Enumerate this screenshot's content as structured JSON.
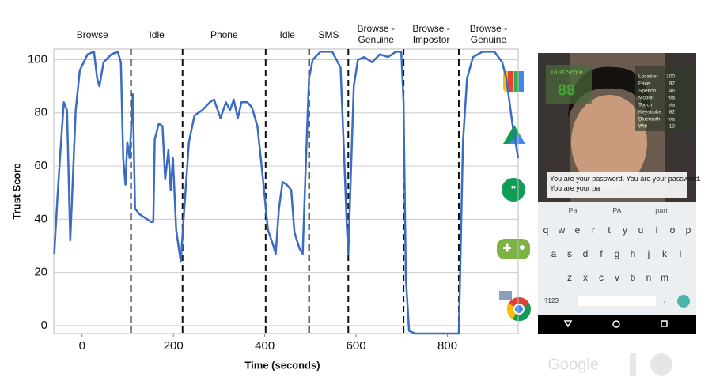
{
  "chart_data": {
    "type": "line",
    "x": [
      -61,
      -54,
      -47,
      -40,
      -33,
      -26,
      -14,
      -5,
      12,
      26,
      33,
      38,
      47,
      64,
      78,
      85,
      90,
      95,
      99,
      104,
      111,
      116,
      125,
      151,
      156,
      159,
      168,
      176,
      182,
      189,
      194,
      199,
      206,
      216,
      223,
      234,
      246,
      263,
      280,
      289,
      303,
      315,
      324,
      332,
      341,
      349,
      362,
      372,
      384,
      396,
      407,
      419,
      424,
      431,
      439,
      448,
      458,
      465,
      476,
      483,
      490,
      497,
      505,
      522,
      548,
      566,
      574,
      580,
      583,
      588,
      595,
      604,
      618,
      635,
      652,
      670,
      687,
      699,
      704,
      709,
      716,
      730,
      825,
      834,
      843,
      856,
      877,
      903,
      920,
      929,
      943,
      955
    ],
    "values": [
      27,
      48,
      67,
      84,
      81,
      32,
      81,
      96,
      102,
      103,
      93,
      90,
      99,
      102,
      103,
      99,
      63,
      53,
      69,
      63,
      87,
      44,
      42,
      39,
      39,
      70,
      76,
      75,
      55,
      66,
      51,
      63,
      36,
      24,
      42,
      69,
      79,
      81,
      84,
      85,
      78,
      84,
      81,
      85,
      78,
      84,
      84,
      82,
      75,
      55,
      36,
      30,
      27,
      44,
      54,
      53,
      51,
      35,
      29,
      27,
      61,
      93,
      100,
      103,
      103,
      97,
      63,
      36,
      27,
      54,
      90,
      100,
      101,
      99,
      102,
      101,
      103,
      103,
      84,
      18,
      -2,
      -3,
      -3,
      69,
      93,
      101,
      103,
      103,
      99,
      93,
      75,
      63
    ],
    "color": "#3a6cc4",
    "xlim": [
      -62,
      955
    ],
    "ylim": [
      -3,
      104
    ],
    "xticks": [
      0,
      200,
      400,
      600,
      800
    ],
    "yticks": [
      0,
      20,
      40,
      60,
      80,
      100
    ],
    "grid": true,
    "xlabel": "Time (seconds)",
    "ylabel": "Trust Score",
    "phases": [
      "Browse",
      "Idle",
      "Phone",
      "Idle",
      "SMS",
      "Browse - Genuine",
      "Browse - Impostor",
      "Browse - Genuine"
    ],
    "phase_boundaries": [
      107,
      220,
      402,
      497,
      583,
      704,
      825
    ]
  },
  "phone": {
    "overlay_title": "Trust Score",
    "overlay_score": "88",
    "metrics": [
      [
        "Location",
        "100"
      ],
      [
        "Face",
        "97"
      ],
      [
        "Speech",
        "46"
      ],
      [
        "Motion",
        "n/a"
      ],
      [
        "Touch",
        "n/a"
      ],
      [
        "Keystroke",
        "82"
      ],
      [
        "Bluetooth",
        "n/a"
      ],
      [
        "Wifi",
        "13"
      ]
    ],
    "typed_text": "You are your password.  You are your password.  You are your pa",
    "suggestions": [
      "Pa",
      "PA",
      "part"
    ],
    "key_rows": [
      [
        "q",
        "w",
        "e",
        "r",
        "t",
        "y",
        "u",
        "i",
        "o",
        "p"
      ],
      [
        "a",
        "s",
        "d",
        "f",
        "g",
        "h",
        "j",
        "k",
        "l"
      ],
      [
        "z",
        "x",
        "c",
        "v",
        "b",
        "n",
        "m"
      ]
    ],
    "symbols_key": "?123",
    "period_key": "."
  },
  "footer": "Google"
}
